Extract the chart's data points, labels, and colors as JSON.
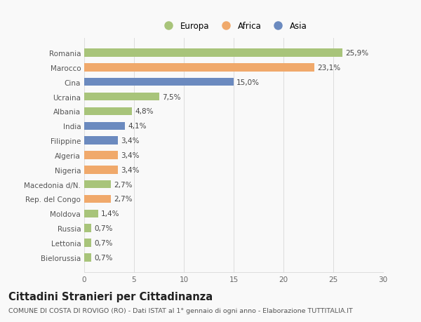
{
  "categories": [
    "Romania",
    "Marocco",
    "Cina",
    "Ucraina",
    "Albania",
    "India",
    "Filippine",
    "Algeria",
    "Nigeria",
    "Macedonia d/N.",
    "Rep. del Congo",
    "Moldova",
    "Russia",
    "Lettonia",
    "Bielorussia"
  ],
  "values": [
    25.9,
    23.1,
    15.0,
    7.5,
    4.8,
    4.1,
    3.4,
    3.4,
    3.4,
    2.7,
    2.7,
    1.4,
    0.7,
    0.7,
    0.7
  ],
  "labels": [
    "25,9%",
    "23,1%",
    "15,0%",
    "7,5%",
    "4,8%",
    "4,1%",
    "3,4%",
    "3,4%",
    "3,4%",
    "2,7%",
    "2,7%",
    "1,4%",
    "0,7%",
    "0,7%",
    "0,7%"
  ],
  "colors": [
    "#a8c47a",
    "#f0a96b",
    "#6b8abf",
    "#a8c47a",
    "#a8c47a",
    "#6b8abf",
    "#6b8abf",
    "#f0a96b",
    "#f0a96b",
    "#a8c47a",
    "#f0a96b",
    "#a8c47a",
    "#a8c47a",
    "#a8c47a",
    "#a8c47a"
  ],
  "legend_labels": [
    "Europa",
    "Africa",
    "Asia"
  ],
  "legend_colors": [
    "#a8c47a",
    "#f0a96b",
    "#6b8abf"
  ],
  "title": "Cittadini Stranieri per Cittadinanza",
  "subtitle": "COMUNE DI COSTA DI ROVIGO (RO) - Dati ISTAT al 1° gennaio di ogni anno - Elaborazione TUTTITALIA.IT",
  "xlim": [
    0,
    30
  ],
  "xticks": [
    0,
    5,
    10,
    15,
    20,
    25,
    30
  ],
  "bg_color": "#f9f9f9",
  "grid_color": "#dddddd",
  "bar_height": 0.55,
  "label_fontsize": 7.5,
  "tick_fontsize": 7.5,
  "title_fontsize": 10.5,
  "subtitle_fontsize": 6.8,
  "legend_fontsize": 8.5
}
